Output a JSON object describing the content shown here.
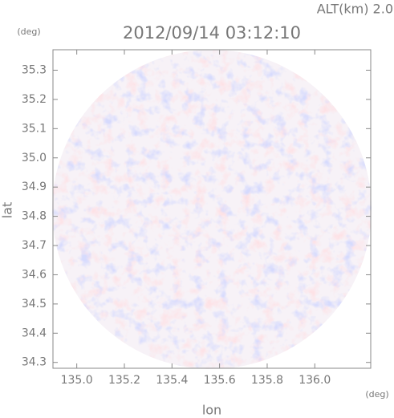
{
  "chart_data": {
    "type": "radar-map",
    "title": "2012/09/14 03:12:10",
    "annotation": "ALT(km) 2.0",
    "x_label": "lon",
    "x_unit": "(deg)",
    "y_label": "lat",
    "y_unit": "(deg)",
    "xlim": [
      134.9,
      136.235
    ],
    "ylim": [
      34.28,
      35.37
    ],
    "xticks": [
      {
        "value": 135,
        "label": "135.0"
      },
      135.2,
      135.4,
      135.6,
      135.8,
      {
        "value": 136,
        "label": "136.0"
      }
    ],
    "yticks": [
      34.3,
      34.4,
      34.5,
      34.6,
      34.7,
      34.8,
      34.9,
      {
        "value": 35,
        "label": "35.0"
      },
      35.1,
      35.2,
      35.3
    ]
  }
}
